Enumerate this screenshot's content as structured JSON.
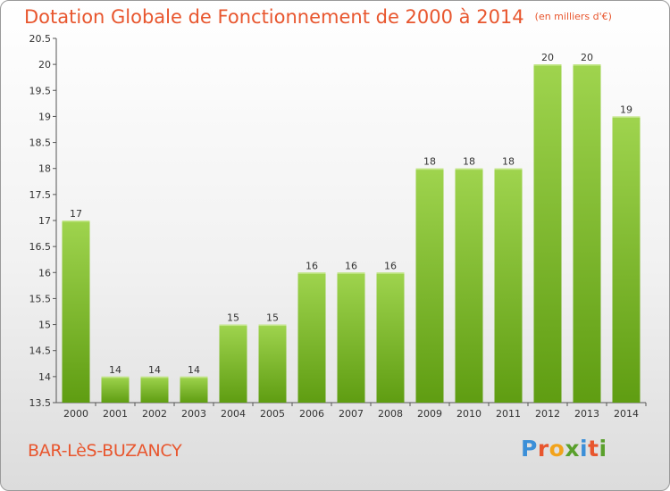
{
  "title": "Dotation Globale de Fonctionnement de 2000 à 2014",
  "subtitle": "(en milliers d'€)",
  "commune": "BAR-LèS-BUZANCY",
  "logo": {
    "text": "Proxiti",
    "letter_colors": [
      "#3b8fd8",
      "#e8562e",
      "#f2a31b",
      "#5aa02c",
      "#3b8fd8",
      "#e8562e",
      "#5aa02c"
    ]
  },
  "colors": {
    "bar_top": "#9fd44e",
    "bar_bottom": "#5f9d12",
    "title": "#e8562e",
    "axis": "#555555"
  },
  "chart_data": {
    "type": "bar",
    "categories": [
      "2000",
      "2001",
      "2002",
      "2003",
      "2004",
      "2005",
      "2006",
      "2007",
      "2008",
      "2009",
      "2010",
      "2011",
      "2012",
      "2013",
      "2014"
    ],
    "values": [
      17,
      14,
      14,
      14,
      15,
      15,
      16,
      16,
      16,
      18,
      18,
      18,
      20,
      20,
      19
    ],
    "data_labels": [
      "17",
      "14",
      "14",
      "14",
      "15",
      "15",
      "16",
      "16",
      "16",
      "18",
      "18",
      "18",
      "20",
      "20",
      "19"
    ],
    "yticks": [
      13.5,
      14,
      14.5,
      15,
      15.5,
      16,
      16.5,
      17,
      17.5,
      18,
      18.5,
      19,
      19.5,
      20,
      20.5
    ],
    "ytick_labels": [
      "13.5",
      "14",
      "14.5",
      "15",
      "15.5",
      "16",
      "16.5",
      "17",
      "17.5",
      "18",
      "18.5",
      "19",
      "19.5",
      "20",
      "20.5"
    ],
    "ylim": [
      13.5,
      20.5
    ],
    "grid": false
  }
}
